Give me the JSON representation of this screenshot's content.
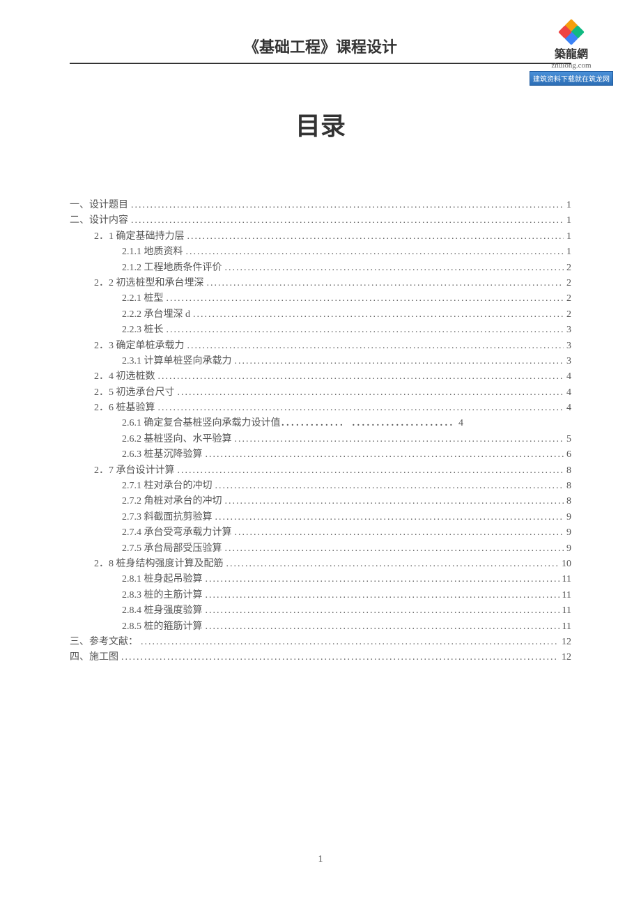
{
  "header": {
    "title": "《基础工程》课程设计"
  },
  "logo": {
    "cn": "築龍網",
    "en": "zhulong.com",
    "slogan": "建筑资料下载就在筑龙网"
  },
  "main_title": "目录",
  "page_number": "1",
  "toc": [
    {
      "level": 1,
      "label": "一、设计题目",
      "page": "1"
    },
    {
      "level": 1,
      "label": "二、设计内容",
      "page": "1"
    },
    {
      "level": 2,
      "label": "2．1 确定基础持力层",
      "page": "1"
    },
    {
      "level": 3,
      "label": "2.1.1 地质资料",
      "page": "1"
    },
    {
      "level": 3,
      "label": "2.1.2 工程地质条件评价",
      "page": "2"
    },
    {
      "level": 2,
      "label": "2．2 初选桩型和承台埋深",
      "page": "2"
    },
    {
      "level": 3,
      "label": "2.2.1 桩型",
      "page": "2"
    },
    {
      "level": 3,
      "label": "2.2.2 承台埋深 d",
      "page": "2"
    },
    {
      "level": 3,
      "label": "2.2.3 桩长",
      "page": "3"
    },
    {
      "level": 2,
      "label": "2．3 确定单桩承载力",
      "page": "3"
    },
    {
      "level": 3,
      "label": "2.3.1 计算单桩竖向承载力",
      "page": "3"
    },
    {
      "level": 2,
      "label": "2．4 初选桩数",
      "page": "4"
    },
    {
      "level": 2,
      "label": "2．5 初选承台尺寸",
      "page": "4"
    },
    {
      "level": 2,
      "label": "2．6 桩基验算",
      "page": "4"
    },
    {
      "level": 3,
      "label": "2.6.1 确定复合基桩竖向承载力设计值．．．．．．．．．．．．． ．．．．．．．．．．．．．．．．．．．．．4",
      "page": ""
    },
    {
      "level": 3,
      "label": "2.6.2 基桩竖向、水平验算",
      "page": "5"
    },
    {
      "level": 3,
      "label": "2.6.3 桩基沉降验算",
      "page": "6"
    },
    {
      "level": 2,
      "label": "2．7 承台设计计算",
      "page": "8"
    },
    {
      "level": 3,
      "label": "2.7.1 柱对承台的冲切",
      "page": "8"
    },
    {
      "level": 3,
      "label": "2.7.2 角桩对承台的冲切",
      "page": "8"
    },
    {
      "level": 3,
      "label": "2.7.3 斜截面抗剪验算",
      "page": "9"
    },
    {
      "level": 3,
      "label": "2.7.4 承台受弯承载力计算",
      "page": "9"
    },
    {
      "level": 3,
      "label": "2.7.5 承台局部受压验算",
      "page": "9"
    },
    {
      "level": 2,
      "label": "2．8 桩身结构强度计算及配筋",
      "page": "10"
    },
    {
      "level": 3,
      "label": "2.8.1 桩身起吊验算",
      "page": "11"
    },
    {
      "level": 3,
      "label": "2.8.3 桩的主筋计算",
      "page": "11"
    },
    {
      "level": 3,
      "label": "2.8.4 桩身强度验算",
      "page": "11"
    },
    {
      "level": 3,
      "label": "2.8.5 桩的箍筋计算",
      "page": "11"
    },
    {
      "level": 1,
      "label": "三、参考文献：",
      "page": "12"
    },
    {
      "level": 1,
      "label": "四、施工图",
      "page": "12"
    }
  ]
}
